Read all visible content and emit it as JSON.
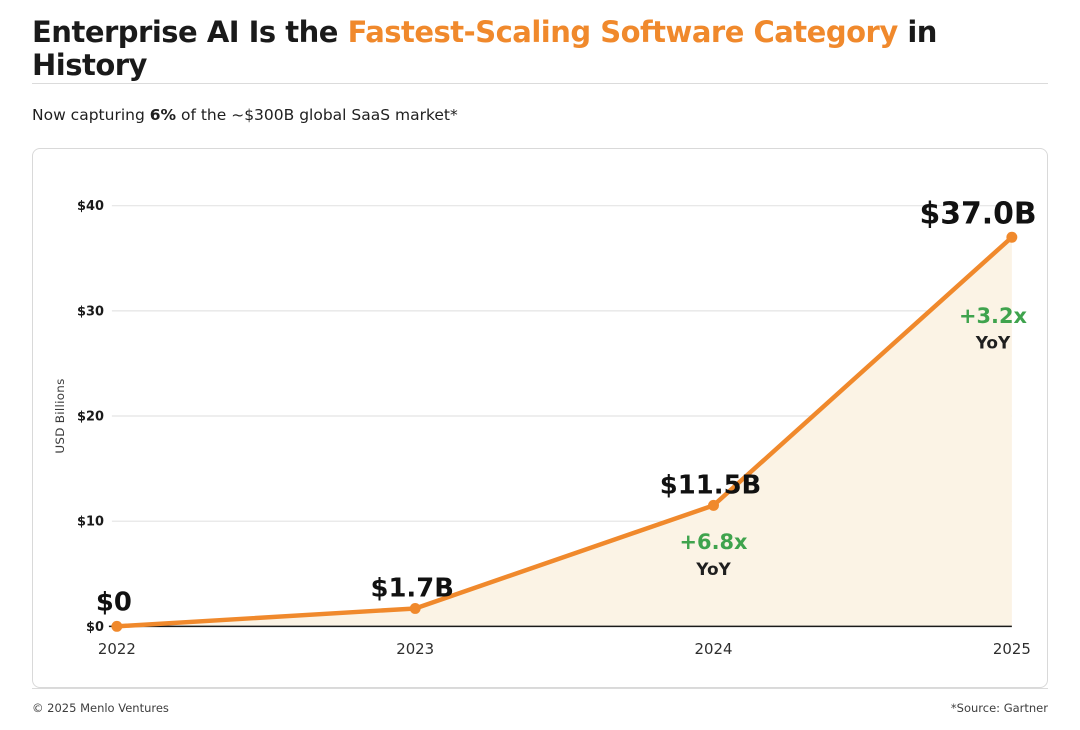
{
  "header": {
    "title_prefix": "Enterprise AI Is the ",
    "title_highlight": "Fastest-Scaling Software Category",
    "title_suffix": " in History",
    "subtitle_prefix": "Now capturing ",
    "subtitle_bold": "6%",
    "subtitle_suffix": " of the ~$300B global SaaS market*"
  },
  "footer": {
    "left": "© 2025 Menlo Ventures",
    "right": "*Source: Gartner"
  },
  "colors": {
    "accent_orange": "#F0892C",
    "accent_green": "#3FA34D",
    "area_fill": "#FBF3E5",
    "grid": "#E4E4E4",
    "baseline": "#1a1a1a"
  },
  "chart_data": {
    "type": "area",
    "categories": [
      "2022",
      "2023",
      "2024",
      "2025"
    ],
    "values": [
      0,
      1.7,
      11.5,
      37.0
    ],
    "point_labels": [
      "$0",
      "$1.7B",
      "$11.5B",
      "$37.0B"
    ],
    "annotations": [
      {
        "category": "2024",
        "growth": "+6.8x",
        "sub": "YoY"
      },
      {
        "category": "2025",
        "growth": "+3.2x",
        "sub": "YoY"
      }
    ],
    "title": "",
    "xlabel": "",
    "ylabel": "USD Billions",
    "ylim": [
      0,
      40
    ],
    "yticks": [
      0,
      10,
      20,
      30,
      40
    ],
    "ytick_labels": [
      "$0",
      "$10",
      "$20",
      "$30",
      "$40"
    ],
    "grid": true,
    "legend": "none"
  }
}
